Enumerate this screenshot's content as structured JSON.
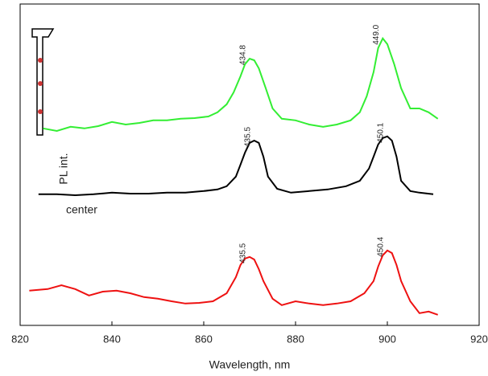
{
  "chart_data": {
    "type": "line",
    "xlabel": "Wavelength, nm",
    "xlim": [
      820,
      920
    ],
    "xticks": [
      820,
      840,
      860,
      880,
      900,
      920
    ],
    "ylim": [
      0,
      100
    ],
    "annotations": [
      "PL int.",
      "center"
    ],
    "series": [
      {
        "color": "#33ee33",
        "peak_labels": [
          "434.8",
          "449.0"
        ],
        "x": [
          825,
          828,
          831,
          834,
          837,
          840,
          843,
          846,
          849,
          852,
          855,
          858,
          861,
          863,
          865,
          866.5,
          868,
          869,
          870,
          871,
          872,
          873.5,
          875,
          877,
          880,
          883,
          886,
          889,
          892,
          894,
          895.5,
          897,
          898,
          899,
          900,
          901.5,
          903,
          905,
          907,
          909,
          911
        ],
        "values": [
          61.3,
          60.5,
          61.8,
          61.3,
          62,
          63.3,
          62.5,
          63,
          63.8,
          63.8,
          64.3,
          64.5,
          65,
          66.3,
          68.8,
          72.5,
          77.5,
          81.3,
          83,
          82.5,
          80,
          73.8,
          67.5,
          64.3,
          63.8,
          62.5,
          61.8,
          62.5,
          63.8,
          66.3,
          71.3,
          78.8,
          86.3,
          89.3,
          87.5,
          81.3,
          73.8,
          67.5,
          67.5,
          66.3,
          64.3
        ]
      },
      {
        "color": "#000000",
        "peak_labels": [
          "435.5",
          "450.1"
        ],
        "x": [
          824,
          828,
          832,
          836,
          840,
          844,
          848,
          852,
          856,
          860,
          863,
          865,
          867,
          868,
          869,
          870,
          871,
          872,
          873,
          874,
          876,
          879,
          883,
          887,
          891,
          894,
          896,
          897,
          898,
          899,
          900,
          901,
          902,
          903,
          905,
          907,
          910
        ],
        "values": [
          40.8,
          40.8,
          40.5,
          40.8,
          41.3,
          41,
          41,
          41.3,
          41.3,
          41.8,
          42.3,
          43.3,
          46.3,
          50,
          53.8,
          56.8,
          57.5,
          56.8,
          52.5,
          46.3,
          42.5,
          41.3,
          41.8,
          42.3,
          43.3,
          45,
          48.8,
          52.5,
          56.3,
          58.3,
          58.8,
          57.5,
          52.5,
          45,
          41.8,
          41.3,
          40.8
        ]
      },
      {
        "color": "#ee1111",
        "peak_labels": [
          "435.5",
          "450.4"
        ],
        "x": [
          822,
          826,
          829,
          832,
          835,
          838,
          841,
          844,
          847,
          850,
          853,
          856,
          859,
          862,
          865,
          867,
          868,
          869,
          870,
          871,
          872,
          873,
          875,
          877,
          880,
          883,
          886,
          889,
          892,
          895,
          897,
          898,
          899,
          900,
          901,
          902,
          903,
          905,
          907,
          909,
          911
        ],
        "values": [
          10.8,
          11.3,
          12.5,
          11.3,
          9.3,
          10.5,
          10.8,
          10,
          8.8,
          8.3,
          7.5,
          6.8,
          7,
          7.5,
          10,
          15,
          18.8,
          20.8,
          21.3,
          20.5,
          17.5,
          13.8,
          8.3,
          6.3,
          7.5,
          6.8,
          6.3,
          6.8,
          7.5,
          10,
          13.8,
          18.3,
          21.8,
          23.3,
          22.5,
          18.8,
          13.8,
          7.5,
          3.8,
          4.3,
          3.3
        ]
      }
    ]
  }
}
